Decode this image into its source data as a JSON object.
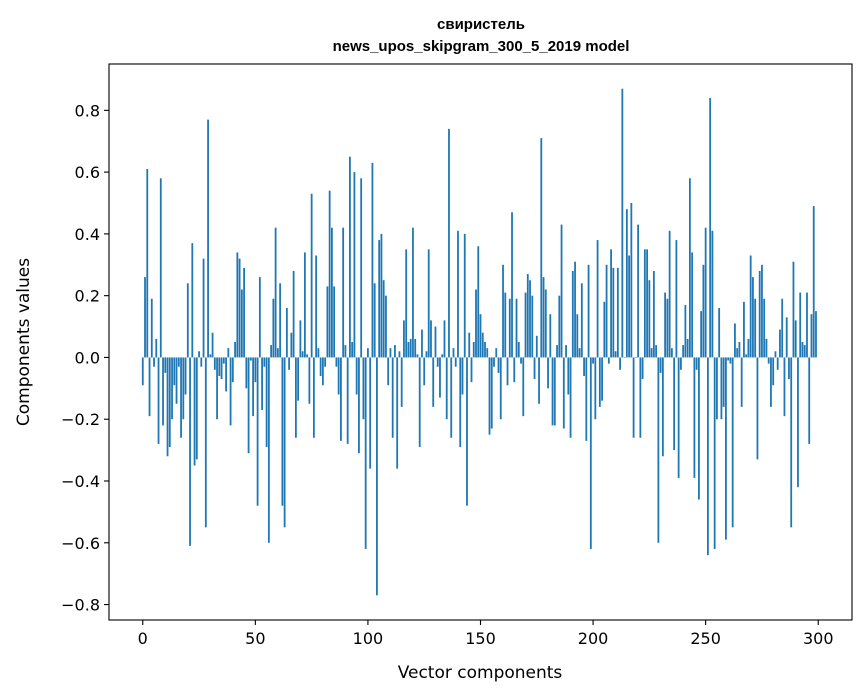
{
  "chart_data": {
    "type": "bar",
    "title": "свиристель",
    "subtitle": "news_upos_skipgram_300_5_2019 model",
    "xlabel": "Vector components",
    "ylabel": "Components values",
    "xlim": [
      -15,
      315
    ],
    "ylim": [
      -0.85,
      0.95
    ],
    "xticks": [
      0,
      50,
      100,
      150,
      200,
      250,
      300
    ],
    "xtick_labels": [
      "0",
      "50",
      "100",
      "150",
      "200",
      "250",
      "300"
    ],
    "yticks": [
      -0.8,
      -0.6,
      -0.4,
      -0.2,
      0.0,
      0.2,
      0.4,
      0.6,
      0.8
    ],
    "ytick_labels": [
      "−0.8",
      "−0.6",
      "−0.4",
      "−0.2",
      "0.0",
      "0.2",
      "0.4",
      "0.6",
      "0.8"
    ],
    "grid": false,
    "bar_color": "#1f77b4",
    "values": [
      -0.09,
      0.26,
      0.61,
      -0.19,
      0.19,
      -0.03,
      0.06,
      -0.28,
      0.58,
      -0.22,
      -0.05,
      -0.32,
      -0.29,
      -0.2,
      -0.09,
      -0.15,
      -0.03,
      -0.26,
      -0.2,
      -0.12,
      0.24,
      -0.61,
      0.37,
      -0.35,
      -0.33,
      0.02,
      -0.03,
      0.32,
      -0.55,
      0.77,
      0.01,
      0.08,
      -0.04,
      -0.2,
      -0.06,
      -0.07,
      -0.02,
      -0.11,
      0.03,
      -0.22,
      -0.08,
      0.05,
      0.34,
      0.32,
      0.22,
      0.29,
      -0.1,
      -0.31,
      -0.01,
      -0.19,
      -0.08,
      -0.48,
      0.26,
      -0.17,
      -0.03,
      -0.29,
      -0.6,
      0.04,
      0.19,
      0.42,
      0.03,
      0.24,
      -0.48,
      -0.55,
      0.16,
      -0.04,
      0.08,
      0.28,
      -0.26,
      -0.14,
      0.12,
      0.02,
      0.34,
      0.01,
      -0.15,
      0.53,
      -0.26,
      0.33,
      0.03,
      -0.06,
      -0.09,
      -0.03,
      0.23,
      0.54,
      0.42,
      0.23,
      -0.03,
      -0.12,
      -0.27,
      0.42,
      0.04,
      -0.28,
      0.65,
      0.05,
      0.6,
      -0.12,
      -0.31,
      0.58,
      -0.2,
      -0.62,
      0.03,
      -0.36,
      0.63,
      0.24,
      -0.77,
      0.38,
      0.4,
      0.25,
      0.2,
      -0.09,
      0.03,
      -0.26,
      0.04,
      -0.36,
      0.02,
      -0.16,
      0.12,
      0.35,
      0.05,
      0.06,
      0.42,
      0.06,
      0.01,
      -0.29,
      0.09,
      -0.09,
      0.02,
      0.35,
      0.12,
      -0.16,
      0.1,
      -0.03,
      -0.13,
      0.01,
      0.12,
      -0.2,
      0.74,
      -0.26,
      0.03,
      -0.03,
      0.41,
      -0.29,
      -0.12,
      0.4,
      -0.48,
      0.08,
      -0.08,
      0.05,
      0.22,
      0.36,
      0.14,
      0.08,
      0.05,
      0.03,
      -0.25,
      -0.23,
      -0.03,
      0.03,
      -0.05,
      -0.2,
      0.3,
      0.21,
      -0.09,
      0.19,
      0.47,
      -0.08,
      0.19,
      0.05,
      -0.02,
      -0.19,
      0.21,
      0.27,
      0.25,
      0.2,
      -0.07,
      0.07,
      -0.15,
      0.71,
      0.26,
      0.22,
      -0.1,
      0.14,
      -0.22,
      -0.22,
      0.04,
      0.2,
      0.43,
      -0.23,
      0.04,
      -0.12,
      -0.26,
      0.28,
      0.31,
      0.14,
      0.03,
      0.24,
      -0.06,
      -0.27,
      0.3,
      -0.62,
      -0.02,
      -0.2,
      0.38,
      -0.16,
      -0.14,
      0.18,
      0.3,
      -0.02,
      0.35,
      0.29,
      0.02,
      0.29,
      -0.04,
      0.87,
      0.0,
      0.48,
      0.33,
      0.5,
      -0.26,
      0.0,
      0.43,
      -0.26,
      -0.07,
      0.35,
      0.35,
      0.25,
      0.03,
      0.28,
      0.04,
      -0.6,
      -0.05,
      -0.32,
      0.21,
      0.19,
      0.41,
      0.03,
      -0.3,
      0.38,
      -0.39,
      -0.04,
      0.04,
      0.17,
      0.06,
      0.58,
      0.34,
      -0.39,
      -0.04,
      -0.46,
      0.15,
      0.3,
      0.42,
      -0.64,
      0.84,
      0.41,
      -0.62,
      -0.2,
      0.16,
      -0.2,
      -0.16,
      -0.59,
      -0.01,
      -0.02,
      -0.55,
      0.11,
      0.03,
      0.05,
      -0.16,
      0.18,
      0.01,
      0.06,
      0.33,
      0.26,
      0.19,
      -0.33,
      0.28,
      0.3,
      0.19,
      0.06,
      -0.02,
      -0.16,
      -0.09,
      0.02,
      -0.04,
      0.09,
      0.19,
      -0.19,
      0.13,
      -0.07,
      -0.55,
      0.31,
      0.12,
      -0.42,
      0.21,
      0.05,
      0.04,
      0.21,
      -0.28,
      0.14,
      0.49,
      0.15
    ]
  }
}
